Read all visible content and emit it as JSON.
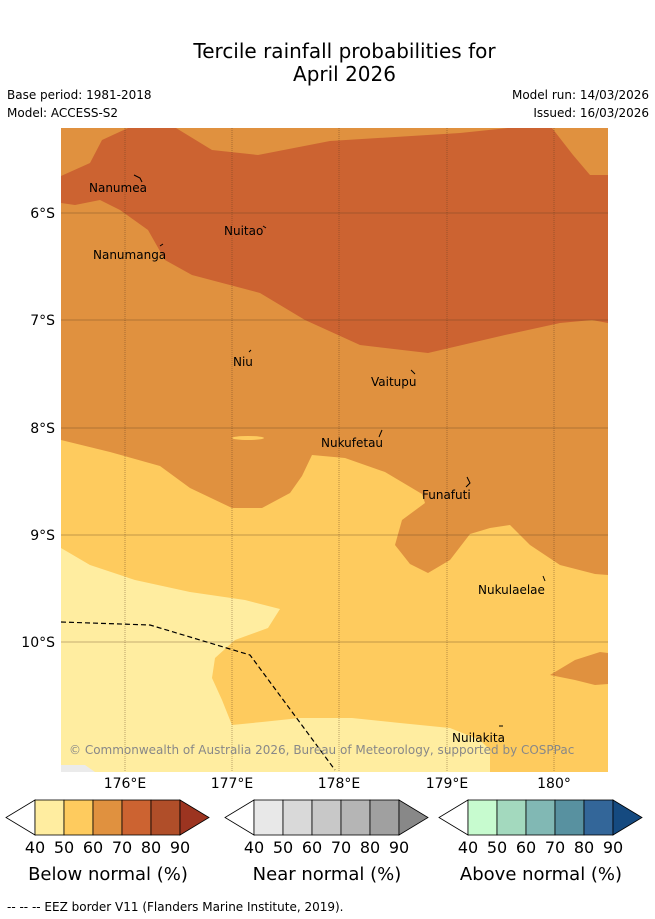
{
  "title_line1": "Tercile rainfall probabilities for",
  "title_line2": "April 2026",
  "base_period": "Base period: 1981-2018",
  "model": "Model: ACCESS-S2",
  "model_run": "Model run: 14/03/2026",
  "issued": "Issued: 16/03/2026",
  "copyright": "© Commonwealth of Australia 2026, Bureau of Meteorology, supported by COSPPac",
  "lat_labels": [
    "6°S",
    "7°S",
    "8°S",
    "9°S",
    "10°S"
  ],
  "lon_labels": [
    "176°E",
    "177°E",
    "178°E",
    "179°E",
    "180°"
  ],
  "places": {
    "nanumea": "Nanumea",
    "nuitao": "Nuitao",
    "nanumanga": "Nanumanga",
    "niu": "Niu",
    "vaitupu": "Vaitupu",
    "nukufetau": "Nukufetau",
    "funafuti": "Funafuti",
    "nukulaelae": "Nukulaelae",
    "nuilakita": "Nuilakita"
  },
  "colorbars": [
    {
      "title": "Below normal (%)",
      "ticks": [
        "40",
        "50",
        "60",
        "70",
        "80",
        "90"
      ],
      "colors": [
        "#ffffff",
        "#ffeda0",
        "#fecb5e",
        "#e0913f",
        "#cc6331",
        "#b04e29",
        "#9c3420"
      ]
    },
    {
      "title": "Near normal (%)",
      "ticks": [
        "40",
        "50",
        "60",
        "70",
        "80",
        "90"
      ],
      "colors": [
        "#ffffff",
        "#e8e8e8",
        "#d9d9d9",
        "#c8c8c8",
        "#b5b5b5",
        "#a0a0a0",
        "#888888"
      ]
    },
    {
      "title": "Above normal (%)",
      "ticks": [
        "40",
        "50",
        "60",
        "70",
        "80",
        "90"
      ],
      "colors": [
        "#ffffff",
        "#c7fbcf",
        "#a3d9be",
        "#81b8b4",
        "#5891a0",
        "#336699",
        "#154a80"
      ]
    }
  ],
  "footnote": "--  --  -- EEZ border V11 (Flanders Marine Institute, 2019)."
}
